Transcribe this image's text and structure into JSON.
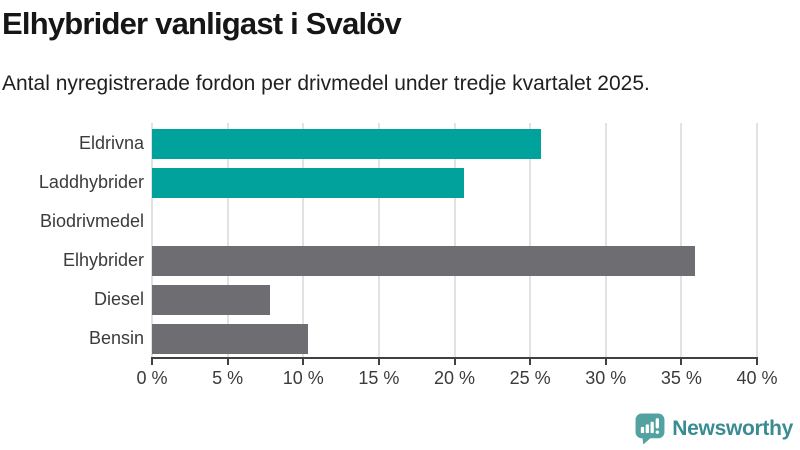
{
  "header": {
    "title": "Elhybrider vanligast i Svalöv",
    "subtitle": "Antal nyregistrerade fordon per drivmedel under tredje kvartalet 2025."
  },
  "chart_data": {
    "type": "bar",
    "orientation": "horizontal",
    "title": "Elhybrider vanligast i Svalöv",
    "subtitle": "Antal nyregistrerade fordon per drivmedel under tredje kvartalet 2025.",
    "categories": [
      "Eldrivna",
      "Laddhybrider",
      "Biodrivmedel",
      "Elhybrider",
      "Diesel",
      "Bensin"
    ],
    "values": [
      25.7,
      20.6,
      0,
      35.9,
      7.8,
      10.3
    ],
    "value_unit": "%",
    "bar_colors": [
      "#00a29b",
      "#00a29b",
      "#6d6d72",
      "#6d6d72",
      "#6d6d72",
      "#6d6d72"
    ],
    "xlim": [
      0,
      40
    ],
    "x_ticks": [
      0,
      5,
      10,
      15,
      20,
      25,
      30,
      35,
      40
    ],
    "x_tick_labels": [
      "0 %",
      "5 %",
      "10 %",
      "15 %",
      "20 %",
      "25 %",
      "30 %",
      "35 %",
      "40 %"
    ],
    "grid": "vertical",
    "legend": "none"
  },
  "colors": {
    "accent_teal": "#00a29b",
    "neutral_gray": "#6d6d72",
    "gridline": "#e2e2e2",
    "axis": "#414141",
    "title_text": "#161616",
    "label_text": "#3b3b3b"
  },
  "footer": {
    "brand_label": "Newsworthy",
    "brand_icon": "newsworthy-speech-bubble-barchart-icon",
    "brand_icon_color": "#52a2a1",
    "brand_text_color": "#3b8c92"
  }
}
